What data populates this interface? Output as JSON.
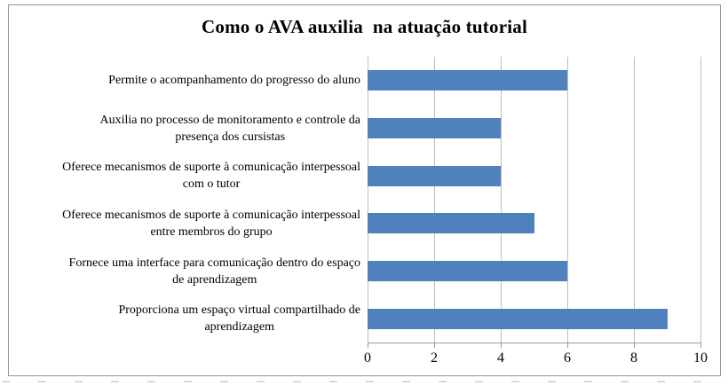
{
  "chart_data": {
    "type": "bar",
    "orientation": "horizontal",
    "title": "Como o AVA auxilia  na atuação tutorial",
    "categories": [
      "Permite o acompanhamento do progresso do aluno",
      "Auxilia no processo de monitoramento e controle da\npresença dos cursistas",
      "Oferece mecanismos de suporte à comunicação interpessoal\ncom o tutor",
      "Oferece mecanismos de suporte à comunicação interpessoal\nentre membros do grupo",
      "Fornece uma interface para comunicação dentro do espaço\nde aprendizagem",
      "Proporciona um espaço virtual compartilhado de\naprendizagem"
    ],
    "values": [
      6,
      4,
      4,
      5,
      6,
      9
    ],
    "xlabel": "",
    "ylabel": "",
    "xlim": [
      0,
      10
    ],
    "xticks": [
      0,
      2,
      4,
      6,
      8,
      10
    ],
    "grid": true,
    "legend": false,
    "colors": {
      "bar": "#4F81BD",
      "gridline": "#BDBDBD",
      "axis": "#9A9A9A",
      "text": "#000000",
      "frame_border": "#949494"
    }
  }
}
